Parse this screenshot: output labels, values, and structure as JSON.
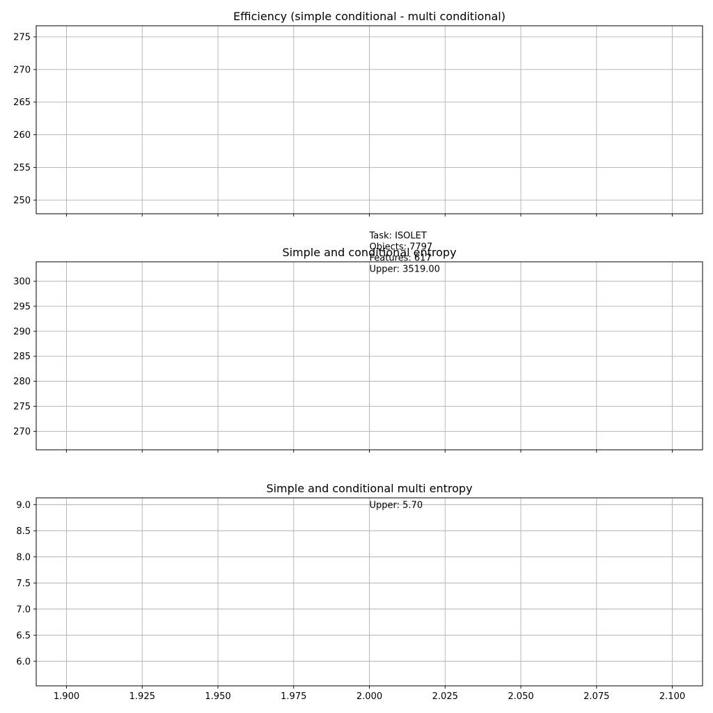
{
  "chart_data": [
    {
      "type": "line",
      "title": "Efficiency (simple conditional - multi conditional)",
      "xlabel": "",
      "ylabel": "",
      "xlim": [
        1.89,
        2.11
      ],
      "ylim": [
        247.9,
        276.7
      ],
      "xticks": [
        1.9,
        1.925,
        1.95,
        1.975,
        2.0,
        2.025,
        2.05,
        2.075,
        2.1
      ],
      "yticks": [
        250,
        255,
        260,
        265,
        270,
        275
      ],
      "ytick_labels": [
        "250",
        "255",
        "260",
        "265",
        "270",
        "275"
      ],
      "xtick_labels": [],
      "grid": true,
      "series": [],
      "annotations": [
        {
          "x": 2.0,
          "y": 244.1,
          "text": "Task: ISOLET"
        },
        {
          "x": 2.0,
          "y": 242.4,
          "text": "Objects: 7797"
        },
        {
          "x": 2.0,
          "y": 240.7,
          "text": "Features: 617"
        },
        {
          "x": 2.0,
          "y": 239.0,
          "text": "Upper: 3519.00"
        }
      ]
    },
    {
      "type": "line",
      "title": "Simple and conditional entropy",
      "xlabel": "",
      "ylabel": "",
      "xlim": [
        1.89,
        2.11
      ],
      "ylim": [
        266.3,
        303.9
      ],
      "xticks": [
        1.9,
        1.925,
        1.95,
        1.975,
        2.0,
        2.025,
        2.05,
        2.075,
        2.1
      ],
      "yticks": [
        270,
        275,
        280,
        285,
        290,
        295,
        300
      ],
      "ytick_labels": [
        "270",
        "275",
        "280",
        "285",
        "290",
        "295",
        "300"
      ],
      "xtick_labels": [],
      "grid": true,
      "series": [],
      "annotations": []
    },
    {
      "type": "line",
      "title": "Simple and conditional multi entropy",
      "xlabel": "",
      "ylabel": "",
      "xlim": [
        1.89,
        2.11
      ],
      "ylim": [
        5.53,
        9.13
      ],
      "xticks": [
        1.9,
        1.925,
        1.95,
        1.975,
        2.0,
        2.025,
        2.05,
        2.075,
        2.1
      ],
      "xtick_labels": [
        "1.900",
        "1.925",
        "1.950",
        "1.975",
        "2.000",
        "2.025",
        "2.050",
        "2.075",
        "2.100"
      ],
      "yticks": [
        6.0,
        6.5,
        7.0,
        7.5,
        8.0,
        8.5,
        9.0
      ],
      "ytick_labels": [
        "6.0",
        "6.5",
        "7.0",
        "7.5",
        "8.0",
        "8.5",
        "9.0"
      ],
      "grid": true,
      "series": [],
      "annotations": [
        {
          "x": 2.0,
          "y": 8.94,
          "text": "Upper: 5.70"
        }
      ]
    }
  ]
}
